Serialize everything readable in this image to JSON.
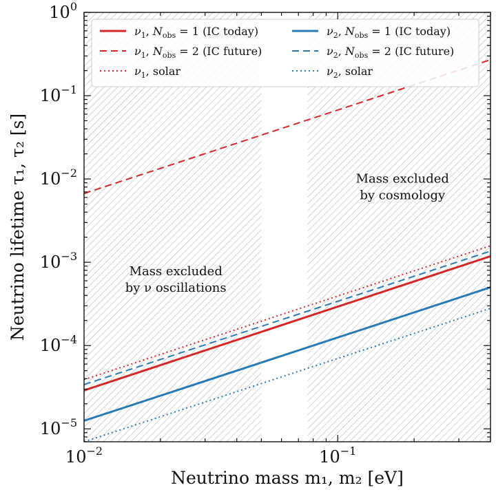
{
  "chart_data": {
    "type": "line",
    "xscale": "log",
    "yscale": "log",
    "xlim": [
      0.01,
      0.4
    ],
    "ylim": [
      7e-06,
      1.0
    ],
    "xlabel": "Neutrino mass m₁, m₂ [eV]",
    "ylabel": "Neutrino lifetime τ₁, τ₂ [s]",
    "xticks": [
      {
        "value": 0.01,
        "base": "10",
        "exp": "−2"
      },
      {
        "value": 0.1,
        "base": "10",
        "exp": "−1"
      }
    ],
    "yticks": [
      {
        "value": 1e-05,
        "base": "10",
        "exp": "−5"
      },
      {
        "value": 0.0001,
        "base": "10",
        "exp": "−4"
      },
      {
        "value": 0.001,
        "base": "10",
        "exp": "−3"
      },
      {
        "value": 0.01,
        "base": "10",
        "exp": "−2"
      },
      {
        "value": 0.1,
        "base": "10",
        "exp": "−1"
      },
      {
        "value": 1,
        "base": "10",
        "exp": "0"
      }
    ],
    "colors": {
      "nu1": "#d62728",
      "nu2": "#2a7ab5",
      "hatch": "#b8b8b8"
    },
    "excluded_regions": [
      {
        "name": "oscillations",
        "x_range": [
          0.01,
          0.05
        ],
        "label_lines": [
          "Mass excluded",
          "by ν oscillations"
        ],
        "label_x": 0.023,
        "label_y": 0.0007
      },
      {
        "name": "cosmology",
        "x_range": [
          0.076,
          0.4
        ],
        "label_lines": [
          "Mass excluded",
          "by cosmology"
        ],
        "label_x": 0.18,
        "label_y": 0.009
      }
    ],
    "series": [
      {
        "name": "ν₁, N_obs = 1 (IC today)",
        "color": "nu1",
        "style": "solid",
        "x": [
          0.01,
          0.4
        ],
        "y": [
          2.9e-05,
          0.00118
        ]
      },
      {
        "name": "ν₁, N_obs = 2 (IC future)",
        "color": "nu1",
        "style": "dashed",
        "x": [
          0.01,
          0.4
        ],
        "y": [
          0.0067,
          0.27
        ]
      },
      {
        "name": "ν₁, solar",
        "color": "nu1",
        "style": "dotted",
        "x": [
          0.01,
          0.4
        ],
        "y": [
          3.9e-05,
          0.00158
        ]
      },
      {
        "name": "ν₂, N_obs = 1 (IC today)",
        "color": "nu2",
        "style": "solid",
        "x": [
          0.01,
          0.4
        ],
        "y": [
          1.25e-05,
          0.0005
        ]
      },
      {
        "name": "ν₂, N_obs = 2 (IC future)",
        "color": "nu2",
        "style": "dashed",
        "x": [
          0.01,
          0.4
        ],
        "y": [
          3.4e-05,
          0.00136
        ]
      },
      {
        "name": "ν₂, solar",
        "color": "nu2",
        "style": "dotted",
        "x": [
          0.01,
          0.4
        ],
        "y": [
          7e-06,
          0.00028
        ]
      }
    ],
    "legend": {
      "placement": "top",
      "columns": 2,
      "entries": [
        {
          "series": 0,
          "nu": "ν",
          "sub": "1",
          "rest": ", N",
          "nsub": "obs",
          "tail": " = 1 (IC today)"
        },
        {
          "series": 3,
          "nu": "ν",
          "sub": "2",
          "rest": ", N",
          "nsub": "obs",
          "tail": " = 1 (IC today)"
        },
        {
          "series": 1,
          "nu": "ν",
          "sub": "1",
          "rest": ", N",
          "nsub": "obs",
          "tail": " = 2 (IC future)"
        },
        {
          "series": 4,
          "nu": "ν",
          "sub": "2",
          "rest": ", N",
          "nsub": "obs",
          "tail": " = 2 (IC future)"
        },
        {
          "series": 2,
          "nu": "ν",
          "sub": "1",
          "rest": ", solar",
          "nsub": "",
          "tail": ""
        },
        {
          "series": 5,
          "nu": "ν",
          "sub": "2",
          "rest": ", solar",
          "nsub": "",
          "tail": ""
        }
      ]
    }
  }
}
